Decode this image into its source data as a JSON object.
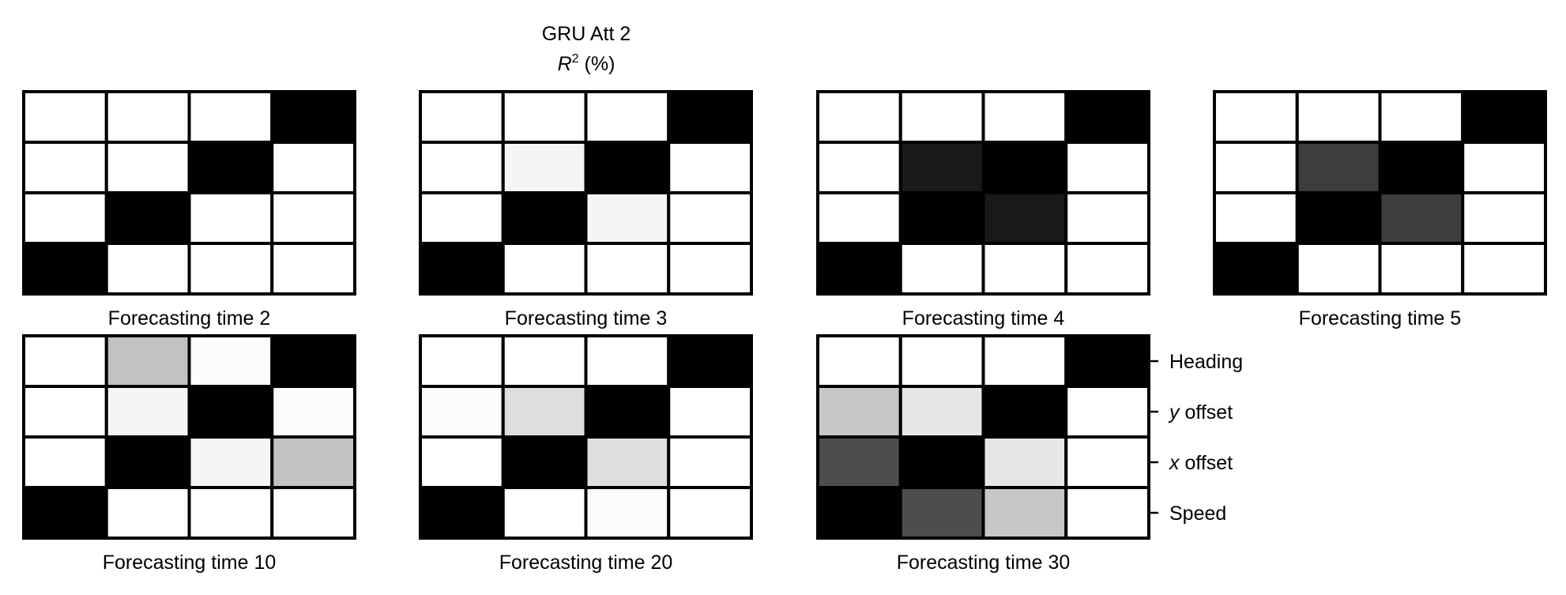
{
  "figure": {
    "title": "GRU Att 2",
    "subtitle_symbol": "R",
    "subtitle_exponent": "2",
    "subtitle_rest": " (%)"
  },
  "row_labels": [
    {
      "symbol": "",
      "text": "Heading"
    },
    {
      "symbol": "y",
      "text": " offset"
    },
    {
      "symbol": "x",
      "text": " offset"
    },
    {
      "symbol": "",
      "text": "Speed"
    }
  ],
  "chart_data": {
    "type": "heatmap",
    "title": "GRU Att 2",
    "colorbar_label": "R² (%)",
    "color_mapping": "grayscale: white = low value, black = high value",
    "row_labels": [
      "Heading",
      "y offset",
      "x offset",
      "Speed"
    ],
    "panels": [
      {
        "label": "Forecasting time 2",
        "values": [
          [
            0,
            0,
            0,
            100
          ],
          [
            0,
            0,
            100,
            0
          ],
          [
            0,
            100,
            0,
            0
          ],
          [
            100,
            0,
            0,
            0
          ]
        ]
      },
      {
        "label": "Forecasting time 3",
        "values": [
          [
            0,
            0,
            0,
            100
          ],
          [
            0,
            4,
            100,
            0
          ],
          [
            0,
            100,
            4,
            0
          ],
          [
            100,
            0,
            0,
            0
          ]
        ]
      },
      {
        "label": "Forecasting time 4",
        "values": [
          [
            0,
            0,
            0,
            100
          ],
          [
            0,
            90,
            100,
            0
          ],
          [
            0,
            100,
            90,
            0
          ],
          [
            100,
            0,
            0,
            0
          ]
        ]
      },
      {
        "label": "Forecasting time 5",
        "values": [
          [
            0,
            0,
            0,
            100
          ],
          [
            0,
            76,
            100,
            0
          ],
          [
            0,
            100,
            76,
            0
          ],
          [
            100,
            0,
            0,
            0
          ]
        ]
      },
      {
        "label": "Forecasting time 10",
        "values": [
          [
            0,
            24,
            1,
            100
          ],
          [
            0,
            4,
            100,
            1
          ],
          [
            0,
            100,
            4,
            24
          ],
          [
            100,
            0,
            0,
            0
          ]
        ]
      },
      {
        "label": "Forecasting time 20",
        "values": [
          [
            0,
            0,
            0,
            100
          ],
          [
            1,
            13,
            100,
            0
          ],
          [
            0,
            100,
            13,
            0
          ],
          [
            100,
            0,
            1,
            0
          ]
        ]
      },
      {
        "label": "Forecasting time 30",
        "values": [
          [
            0,
            0,
            0,
            100
          ],
          [
            22,
            10,
            100,
            0
          ],
          [
            70,
            100,
            10,
            0
          ],
          [
            100,
            70,
            22,
            0
          ]
        ]
      }
    ]
  }
}
